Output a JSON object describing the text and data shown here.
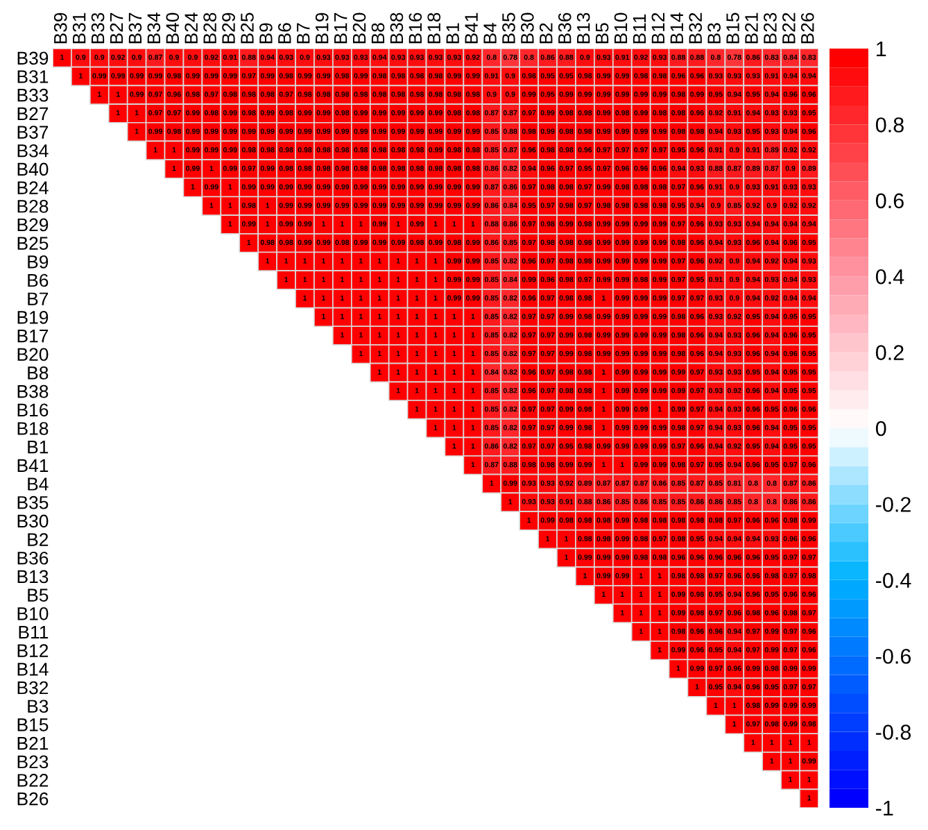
{
  "chart_data": {
    "type": "heatmap",
    "categories": [
      "B39",
      "B31",
      "B33",
      "B27",
      "B37",
      "B34",
      "B40",
      "B24",
      "B28",
      "B29",
      "B25",
      "B9",
      "B6",
      "B7",
      "B19",
      "B17",
      "B20",
      "B8",
      "B38",
      "B16",
      "B18",
      "B1",
      "B41",
      "B4",
      "B35",
      "B30",
      "B2",
      "B36",
      "B13",
      "B5",
      "B10",
      "B11",
      "B12",
      "B14",
      "B32",
      "B3",
      "B15",
      "B21",
      "B23",
      "B22",
      "B26"
    ],
    "y_categories": [
      "B39",
      "B31",
      "B33",
      "B27",
      "B37",
      "B34",
      "B40",
      "B24",
      "B28",
      "B29",
      "B25",
      "B9",
      "B6",
      "B7",
      "B19",
      "B17",
      "B20",
      "B8",
      "B38",
      "B16",
      "B18",
      "B1",
      "B41",
      "B4",
      "B35",
      "B30",
      "B2",
      "B36",
      "B13",
      "B5",
      "B10",
      "B11",
      "B12",
      "B14",
      "B32",
      "B3",
      "B15",
      "B21",
      "B23",
      "B22",
      "B26"
    ],
    "cells": [
      [
        1,
        0.9,
        0.9,
        0.92,
        0.9,
        0.87,
        0.9,
        0.9,
        0.92,
        0.91,
        0.88,
        0.94,
        0.93,
        0.9,
        0.93,
        0.93,
        0.93,
        0.94,
        0.93,
        0.93,
        0.93,
        0.93,
        0.92,
        0.8,
        0.78,
        0.8,
        0.86,
        0.88,
        0.9,
        0.93,
        0.91,
        0.92,
        0.93,
        0.88,
        0.88,
        0.8,
        0.78,
        0.86,
        0.83,
        0.84,
        0.83
      ],
      [
        null,
        1,
        0.99,
        0.99,
        0.99,
        0.99,
        0.98,
        0.99,
        0.99,
        0.99,
        0.97,
        0.99,
        0.98,
        0.99,
        0.99,
        0.98,
        0.99,
        0.98,
        0.98,
        0.98,
        0.98,
        0.99,
        0.99,
        0.91,
        0.9,
        0.98,
        0.95,
        0.95,
        0.98,
        0.99,
        0.99,
        0.98,
        0.98,
        0.96,
        0.96,
        0.93,
        0.93,
        0.93,
        0.91,
        0.94,
        0.94
      ],
      [
        null,
        null,
        1,
        1,
        0.99,
        0.97,
        0.96,
        0.98,
        0.97,
        0.98,
        0.98,
        0.98,
        0.97,
        0.98,
        0.98,
        0.98,
        0.98,
        0.98,
        0.98,
        0.98,
        0.98,
        0.98,
        0.98,
        0.9,
        0.9,
        0.99,
        0.95,
        0.99,
        0.99,
        0.99,
        0.99,
        0.99,
        0.99,
        0.98,
        0.99,
        0.95,
        0.94,
        0.95,
        0.94,
        0.96,
        0.96
      ],
      [
        null,
        null,
        null,
        1,
        1,
        0.97,
        0.97,
        0.99,
        0.98,
        0.99,
        0.98,
        0.99,
        0.98,
        0.99,
        0.99,
        0.98,
        0.99,
        0.99,
        0.99,
        0.99,
        0.99,
        0.98,
        0.98,
        0.87,
        0.87,
        0.97,
        0.99,
        0.98,
        0.98,
        0.99,
        0.98,
        0.99,
        0.98,
        0.98,
        0.96,
        0.92,
        0.91,
        0.94,
        0.93,
        0.93,
        0.95
      ],
      [
        null,
        null,
        null,
        null,
        1,
        0.99,
        0.98,
        0.99,
        0.99,
        0.99,
        0.99,
        0.99,
        0.99,
        0.99,
        0.99,
        0.99,
        0.99,
        0.99,
        0.99,
        0.99,
        0.99,
        0.99,
        0.99,
        0.85,
        0.88,
        0.98,
        0.99,
        0.98,
        0.98,
        0.99,
        0.99,
        0.99,
        0.99,
        0.98,
        0.98,
        0.94,
        0.93,
        0.95,
        0.93,
        0.94,
        0.96
      ],
      [
        null,
        null,
        null,
        null,
        null,
        1,
        1,
        0.99,
        0.99,
        0.99,
        0.98,
        0.98,
        0.98,
        0.98,
        0.98,
        0.98,
        0.98,
        0.98,
        0.98,
        0.98,
        0.99,
        0.98,
        0.98,
        0.85,
        0.87,
        0.96,
        0.98,
        0.98,
        0.96,
        0.97,
        0.97,
        0.97,
        0.97,
        0.95,
        0.96,
        0.91,
        0.9,
        0.91,
        0.89,
        0.92,
        0.92
      ],
      [
        null,
        null,
        null,
        null,
        null,
        null,
        1,
        0.99,
        1,
        0.99,
        0.97,
        0.99,
        0.98,
        0.98,
        0.98,
        0.98,
        0.98,
        0.98,
        0.98,
        0.98,
        0.98,
        0.98,
        0.98,
        0.86,
        0.82,
        0.94,
        0.96,
        0.97,
        0.95,
        0.97,
        0.96,
        0.96,
        0.96,
        0.94,
        0.93,
        0.88,
        0.87,
        0.89,
        0.87,
        0.9,
        0.89
      ],
      [
        null,
        null,
        null,
        null,
        null,
        null,
        null,
        1,
        0.99,
        1,
        0.99,
        0.99,
        0.99,
        0.99,
        0.99,
        0.99,
        0.99,
        0.99,
        0.99,
        0.99,
        0.99,
        0.99,
        0.99,
        0.87,
        0.86,
        0.97,
        0.98,
        0.98,
        0.97,
        0.99,
        0.98,
        0.98,
        0.98,
        0.97,
        0.96,
        0.91,
        0.9,
        0.93,
        0.91,
        0.93,
        0.93
      ],
      [
        null,
        null,
        null,
        null,
        null,
        null,
        null,
        null,
        1,
        1,
        0.98,
        1,
        0.99,
        0.99,
        0.99,
        0.99,
        0.99,
        0.99,
        0.99,
        0.99,
        0.99,
        0.99,
        0.99,
        0.86,
        0.84,
        0.95,
        0.97,
        0.98,
        0.97,
        0.98,
        0.98,
        0.98,
        0.98,
        0.95,
        0.94,
        0.9,
        0.85,
        0.92,
        0.9,
        0.92,
        0.92
      ],
      [
        null,
        null,
        null,
        null,
        null,
        null,
        null,
        null,
        null,
        1,
        0.99,
        1,
        0.99,
        0.99,
        1,
        1,
        1,
        0.99,
        1,
        0.99,
        1,
        1,
        1,
        0.88,
        0.86,
        0.97,
        0.98,
        0.99,
        0.98,
        0.99,
        0.99,
        0.99,
        0.99,
        0.97,
        0.96,
        0.93,
        0.93,
        0.94,
        0.94,
        0.94,
        0.94
      ],
      [
        null,
        null,
        null,
        null,
        null,
        null,
        null,
        null,
        null,
        null,
        1,
        0.98,
        0.98,
        0.99,
        0.99,
        0.98,
        0.99,
        0.99,
        0.99,
        0.98,
        0.99,
        0.98,
        0.99,
        0.86,
        0.85,
        0.97,
        0.98,
        0.98,
        0.98,
        0.99,
        0.99,
        0.99,
        0.99,
        0.98,
        0.96,
        0.94,
        0.93,
        0.96,
        0.94,
        0.96,
        0.95
      ],
      [
        null,
        null,
        null,
        null,
        null,
        null,
        null,
        null,
        null,
        null,
        null,
        1,
        1,
        1,
        1,
        1,
        1,
        1,
        1,
        1,
        1,
        0.99,
        0.99,
        0.85,
        0.82,
        0.96,
        0.97,
        0.98,
        0.98,
        0.99,
        0.99,
        0.99,
        0.99,
        0.97,
        0.96,
        0.92,
        0.9,
        0.94,
        0.92,
        0.94,
        0.93
      ],
      [
        null,
        null,
        null,
        null,
        null,
        null,
        null,
        null,
        null,
        null,
        null,
        null,
        1,
        1,
        1,
        1,
        1,
        1,
        1,
        1,
        1,
        0.99,
        0.99,
        0.85,
        0.84,
        0.99,
        0.96,
        0.98,
        0.97,
        0.99,
        0.99,
        0.98,
        0.99,
        0.97,
        0.95,
        0.91,
        0.9,
        0.94,
        0.93,
        0.94,
        0.93
      ],
      [
        null,
        null,
        null,
        null,
        null,
        null,
        null,
        null,
        null,
        null,
        null,
        null,
        null,
        1,
        1,
        1,
        1,
        1,
        1,
        1,
        1,
        0.99,
        0.99,
        0.85,
        0.82,
        0.96,
        0.97,
        0.98,
        0.98,
        1,
        0.99,
        0.99,
        0.99,
        0.97,
        0.97,
        0.93,
        0.9,
        0.94,
        0.92,
        0.94,
        0.94
      ],
      [
        null,
        null,
        null,
        null,
        null,
        null,
        null,
        null,
        null,
        null,
        null,
        null,
        null,
        null,
        1,
        1,
        1,
        1,
        1,
        1,
        1,
        1,
        1,
        0.85,
        0.82,
        0.97,
        0.97,
        0.99,
        0.98,
        0.99,
        0.99,
        0.99,
        0.99,
        0.98,
        0.96,
        0.93,
        0.92,
        0.95,
        0.94,
        0.95,
        0.95
      ],
      [
        null,
        null,
        null,
        null,
        null,
        null,
        null,
        null,
        null,
        null,
        null,
        null,
        null,
        null,
        null,
        1,
        1,
        1,
        1,
        1,
        1,
        1,
        1,
        0.85,
        0.82,
        0.97,
        0.97,
        0.99,
        0.98,
        0.99,
        0.99,
        0.99,
        0.99,
        0.98,
        0.96,
        0.94,
        0.93,
        0.96,
        0.94,
        0.96,
        0.95
      ],
      [
        null,
        null,
        null,
        null,
        null,
        null,
        null,
        null,
        null,
        null,
        null,
        null,
        null,
        null,
        null,
        null,
        1,
        1,
        1,
        1,
        1,
        1,
        1,
        0.85,
        0.82,
        0.97,
        0.97,
        0.99,
        0.98,
        0.99,
        0.99,
        0.99,
        0.99,
        0.98,
        0.96,
        0.94,
        0.93,
        0.96,
        0.94,
        0.96,
        0.95
      ],
      [
        null,
        null,
        null,
        null,
        null,
        null,
        null,
        null,
        null,
        null,
        null,
        null,
        null,
        null,
        null,
        null,
        null,
        1,
        1,
        1,
        1,
        1,
        1,
        0.84,
        0.82,
        0.96,
        0.97,
        0.98,
        0.98,
        1,
        0.99,
        0.99,
        0.99,
        0.99,
        0.97,
        0.93,
        0.93,
        0.95,
        0.94,
        0.95,
        0.95
      ],
      [
        null,
        null,
        null,
        null,
        null,
        null,
        null,
        null,
        null,
        null,
        null,
        null,
        null,
        null,
        null,
        null,
        null,
        null,
        1,
        1,
        1,
        1,
        1,
        0.85,
        0.82,
        0.96,
        0.97,
        0.98,
        0.98,
        1,
        0.99,
        0.99,
        0.99,
        0.99,
        0.97,
        0.93,
        0.92,
        0.96,
        0.94,
        0.95,
        0.95
      ],
      [
        null,
        null,
        null,
        null,
        null,
        null,
        null,
        null,
        null,
        null,
        null,
        null,
        null,
        null,
        null,
        null,
        null,
        null,
        null,
        1,
        1,
        1,
        1,
        0.85,
        0.82,
        0.97,
        0.97,
        0.99,
        0.98,
        1,
        0.99,
        0.99,
        1,
        0.99,
        0.97,
        0.94,
        0.93,
        0.96,
        0.95,
        0.96,
        0.96
      ],
      [
        null,
        null,
        null,
        null,
        null,
        null,
        null,
        null,
        null,
        null,
        null,
        null,
        null,
        null,
        null,
        null,
        null,
        null,
        null,
        null,
        1,
        1,
        1,
        0.85,
        0.82,
        0.97,
        0.97,
        0.99,
        0.98,
        1,
        0.99,
        0.99,
        0.99,
        0.98,
        0.97,
        0.94,
        0.93,
        0.96,
        0.94,
        0.95,
        0.95
      ],
      [
        null,
        null,
        null,
        null,
        null,
        null,
        null,
        null,
        null,
        null,
        null,
        null,
        null,
        null,
        null,
        null,
        null,
        null,
        null,
        null,
        null,
        1,
        1,
        0.86,
        0.82,
        0.97,
        0.97,
        0.95,
        0.98,
        0.99,
        0.99,
        0.99,
        0.99,
        0.97,
        0.96,
        0.94,
        0.92,
        0.95,
        0.94,
        0.95,
        0.95
      ],
      [
        null,
        null,
        null,
        null,
        null,
        null,
        null,
        null,
        null,
        null,
        null,
        null,
        null,
        null,
        null,
        null,
        null,
        null,
        null,
        null,
        null,
        null,
        1,
        0.87,
        0.88,
        0.98,
        0.98,
        0.99,
        0.99,
        1,
        1,
        0.99,
        0.99,
        0.98,
        0.97,
        0.95,
        0.94,
        0.96,
        0.95,
        0.97,
        0.96
      ],
      [
        null,
        null,
        null,
        null,
        null,
        null,
        null,
        null,
        null,
        null,
        null,
        null,
        null,
        null,
        null,
        null,
        null,
        null,
        null,
        null,
        null,
        null,
        null,
        1,
        0.99,
        0.93,
        0.93,
        0.92,
        0.89,
        0.87,
        0.87,
        0.87,
        0.86,
        0.85,
        0.87,
        0.85,
        0.81,
        0.8,
        0.8,
        0.87,
        0.86
      ],
      [
        null,
        null,
        null,
        null,
        null,
        null,
        null,
        null,
        null,
        null,
        null,
        null,
        null,
        null,
        null,
        null,
        null,
        null,
        null,
        null,
        null,
        null,
        null,
        null,
        1,
        0.93,
        0.93,
        0.91,
        0.88,
        0.86,
        0.85,
        0.86,
        0.85,
        0.85,
        0.86,
        0.86,
        0.85,
        0.8,
        0.8,
        0.86,
        0.86
      ],
      [
        null,
        null,
        null,
        null,
        null,
        null,
        null,
        null,
        null,
        null,
        null,
        null,
        null,
        null,
        null,
        null,
        null,
        null,
        null,
        null,
        null,
        null,
        null,
        null,
        null,
        1,
        0.99,
        0.98,
        0.98,
        0.98,
        0.99,
        0.98,
        0.98,
        0.98,
        0.98,
        0.98,
        0.97,
        0.96,
        0.96,
        0.98,
        0.99
      ],
      [
        null,
        null,
        null,
        null,
        null,
        null,
        null,
        null,
        null,
        null,
        null,
        null,
        null,
        null,
        null,
        null,
        null,
        null,
        null,
        null,
        null,
        null,
        null,
        null,
        null,
        null,
        1,
        1,
        0.98,
        0.98,
        0.99,
        0.98,
        0.97,
        0.98,
        0.95,
        0.94,
        0.94,
        0.94,
        0.93,
        0.96,
        0.96
      ],
      [
        null,
        null,
        null,
        null,
        null,
        null,
        null,
        null,
        null,
        null,
        null,
        null,
        null,
        null,
        null,
        null,
        null,
        null,
        null,
        null,
        null,
        null,
        null,
        null,
        null,
        null,
        null,
        1,
        0.99,
        0.99,
        0.99,
        0.98,
        0.98,
        0.96,
        0.96,
        0.96,
        0.96,
        0.96,
        0.95,
        0.97,
        0.97
      ],
      [
        null,
        null,
        null,
        null,
        null,
        null,
        null,
        null,
        null,
        null,
        null,
        null,
        null,
        null,
        null,
        null,
        null,
        null,
        null,
        null,
        null,
        null,
        null,
        null,
        null,
        null,
        null,
        null,
        1,
        0.99,
        0.99,
        1,
        1,
        0.98,
        0.98,
        0.97,
        0.96,
        0.96,
        0.98,
        0.97,
        0.98
      ],
      [
        null,
        null,
        null,
        null,
        null,
        null,
        null,
        null,
        null,
        null,
        null,
        null,
        null,
        null,
        null,
        null,
        null,
        null,
        null,
        null,
        null,
        null,
        null,
        null,
        null,
        null,
        null,
        null,
        null,
        1,
        1,
        1,
        1,
        0.99,
        0.98,
        0.95,
        0.94,
        0.96,
        0.95,
        0.96,
        0.96
      ],
      [
        null,
        null,
        null,
        null,
        null,
        null,
        null,
        null,
        null,
        null,
        null,
        null,
        null,
        null,
        null,
        null,
        null,
        null,
        null,
        null,
        null,
        null,
        null,
        null,
        null,
        null,
        null,
        null,
        null,
        null,
        1,
        1,
        1,
        0.99,
        0.98,
        0.97,
        0.96,
        0.98,
        0.96,
        0.98,
        0.97
      ],
      [
        null,
        null,
        null,
        null,
        null,
        null,
        null,
        null,
        null,
        null,
        null,
        null,
        null,
        null,
        null,
        null,
        null,
        null,
        null,
        null,
        null,
        null,
        null,
        null,
        null,
        null,
        null,
        null,
        null,
        null,
        null,
        1,
        1,
        0.98,
        0.96,
        0.96,
        0.94,
        0.97,
        0.99,
        0.97,
        0.96
      ],
      [
        null,
        null,
        null,
        null,
        null,
        null,
        null,
        null,
        null,
        null,
        null,
        null,
        null,
        null,
        null,
        null,
        null,
        null,
        null,
        null,
        null,
        null,
        null,
        null,
        null,
        null,
        null,
        null,
        null,
        null,
        null,
        null,
        1,
        0.99,
        0.96,
        0.95,
        0.94,
        0.97,
        0.99,
        0.97,
        0.96
      ],
      [
        null,
        null,
        null,
        null,
        null,
        null,
        null,
        null,
        null,
        null,
        null,
        null,
        null,
        null,
        null,
        null,
        null,
        null,
        null,
        null,
        null,
        null,
        null,
        null,
        null,
        null,
        null,
        null,
        null,
        null,
        null,
        null,
        null,
        1,
        0.99,
        0.97,
        0.96,
        0.99,
        0.98,
        0.99,
        0.99
      ],
      [
        null,
        null,
        null,
        null,
        null,
        null,
        null,
        null,
        null,
        null,
        null,
        null,
        null,
        null,
        null,
        null,
        null,
        null,
        null,
        null,
        null,
        null,
        null,
        null,
        null,
        null,
        null,
        null,
        null,
        null,
        null,
        null,
        null,
        null,
        1,
        0.95,
        0.94,
        0.96,
        0.95,
        0.97,
        0.97
      ],
      [
        null,
        null,
        null,
        null,
        null,
        null,
        null,
        null,
        null,
        null,
        null,
        null,
        null,
        null,
        null,
        null,
        null,
        null,
        null,
        null,
        null,
        null,
        null,
        null,
        null,
        null,
        null,
        null,
        null,
        null,
        null,
        null,
        null,
        null,
        null,
        1,
        1,
        0.98,
        0.99,
        0.99,
        0.99
      ],
      [
        null,
        null,
        null,
        null,
        null,
        null,
        null,
        null,
        null,
        null,
        null,
        null,
        null,
        null,
        null,
        null,
        null,
        null,
        null,
        null,
        null,
        null,
        null,
        null,
        null,
        null,
        null,
        null,
        null,
        null,
        null,
        null,
        null,
        null,
        null,
        null,
        1,
        0.97,
        0.98,
        0.99,
        0.98
      ],
      [
        null,
        null,
        null,
        null,
        null,
        null,
        null,
        null,
        null,
        null,
        null,
        null,
        null,
        null,
        null,
        null,
        null,
        null,
        null,
        null,
        null,
        null,
        null,
        null,
        null,
        null,
        null,
        null,
        null,
        null,
        null,
        null,
        null,
        null,
        null,
        null,
        null,
        1,
        1,
        1,
        1
      ],
      [
        null,
        null,
        null,
        null,
        null,
        null,
        null,
        null,
        null,
        null,
        null,
        null,
        null,
        null,
        null,
        null,
        null,
        null,
        null,
        null,
        null,
        null,
        null,
        null,
        null,
        null,
        null,
        null,
        null,
        null,
        null,
        null,
        null,
        null,
        null,
        null,
        null,
        null,
        1,
        1,
        0.99
      ],
      [
        null,
        null,
        null,
        null,
        null,
        null,
        null,
        null,
        null,
        null,
        null,
        null,
        null,
        null,
        null,
        null,
        null,
        null,
        null,
        null,
        null,
        null,
        null,
        null,
        null,
        null,
        null,
        null,
        null,
        null,
        null,
        null,
        null,
        null,
        null,
        null,
        null,
        null,
        null,
        1,
        1
      ],
      [
        null,
        null,
        null,
        null,
        null,
        null,
        null,
        null,
        null,
        null,
        null,
        null,
        null,
        null,
        null,
        null,
        null,
        null,
        null,
        null,
        null,
        null,
        null,
        null,
        null,
        null,
        null,
        null,
        null,
        null,
        null,
        null,
        null,
        null,
        null,
        null,
        null,
        null,
        null,
        null,
        1
      ]
    ],
    "clim": [
      -1,
      1
    ],
    "cticks": [
      -1,
      -0.8,
      -0.6,
      -0.4,
      -0.2,
      0,
      0.2,
      0.4,
      0.6,
      0.8,
      1
    ],
    "data_labels": true
  }
}
